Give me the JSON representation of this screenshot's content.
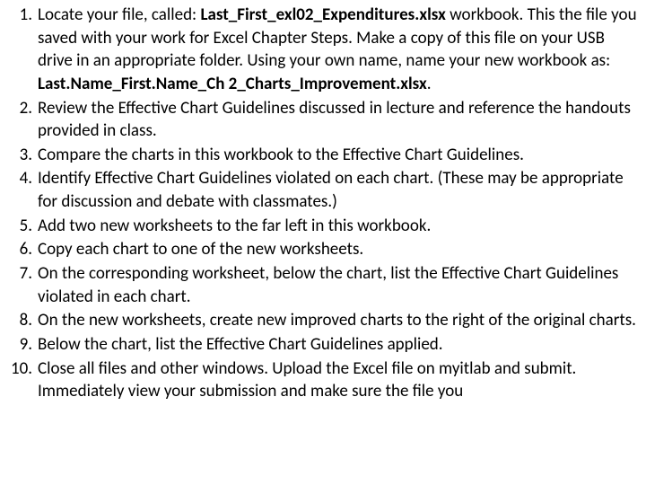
{
  "items": [
    {
      "segments": [
        {
          "text": "Locate your file, called: ",
          "bold": false
        },
        {
          "text": "Last_First_exl02_Expenditures.xlsx",
          "bold": true
        },
        {
          "text": " workbook. This the file you saved with your work for Excel Chapter Steps.  Make a copy of this file on your USB drive in an appropriate folder.  Using your own name, name your new workbook as: ",
          "bold": false
        },
        {
          "text": "Last.Name_First.Name_Ch 2_Charts_Improvement.xlsx",
          "bold": true
        },
        {
          "text": ".",
          "bold": false
        }
      ]
    },
    {
      "segments": [
        {
          "text": "Review the Effective Chart Guidelines discussed in lecture and reference the handouts provided in class.",
          "bold": false
        }
      ]
    },
    {
      "segments": [
        {
          "text": "Compare the charts in this workbook to the Effective Chart Guidelines.",
          "bold": false
        }
      ]
    },
    {
      "segments": [
        {
          "text": "Identify Effective Chart Guidelines violated on each chart.  (These may be appropriate for discussion and debate with classmates.)",
          "bold": false
        }
      ]
    },
    {
      "segments": [
        {
          "text": "Add two new worksheets to the far left in this workbook.",
          "bold": false
        }
      ]
    },
    {
      "segments": [
        {
          "text": "Copy each chart to one of the new worksheets.",
          "bold": false
        }
      ]
    },
    {
      "segments": [
        {
          "text": "On the corresponding worksheet, below the chart, list the Effective Chart Guidelines violated in each chart.",
          "bold": false
        }
      ]
    },
    {
      "segments": [
        {
          "text": "On the new worksheets, create new improved charts to the right of the original charts.",
          "bold": false
        }
      ]
    },
    {
      "segments": [
        {
          "text": "Below the chart, list the Effective Chart Guidelines applied.",
          "bold": false
        }
      ]
    },
    {
      "segments": [
        {
          "text": "Close all files and other windows.  Upload the Excel file on myitlab and submit.  Immediately view your submission and make sure the file you",
          "bold": false
        }
      ]
    }
  ]
}
